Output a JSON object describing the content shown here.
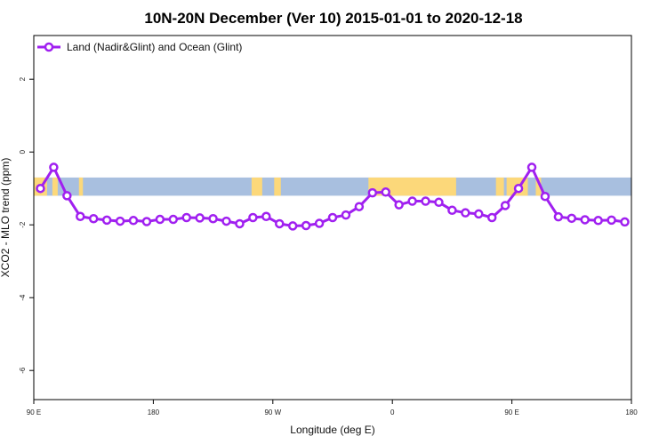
{
  "chart_data": {
    "type": "line",
    "title": "10N-20N December (Ver 10)   2015-01-01 to 2020-12-18",
    "xlabel": "Longitude (deg E)",
    "ylabel": "XCO2 - MLO trend (ppm)",
    "xlim": [
      90,
      540
    ],
    "ylim": [
      -6.8,
      3.2
    ],
    "x_ticks": [
      90,
      180,
      270,
      360,
      450,
      540
    ],
    "x_tick_labels": [
      "90 E",
      "180",
      "90 W",
      "0",
      "90 E",
      "180"
    ],
    "y_ticks": [
      2,
      0,
      -2,
      -4,
      -6
    ],
    "y_tick_labels": [
      "2",
      "0",
      "-2",
      "-4",
      "-6"
    ],
    "grid": false,
    "legend_position": "top-left",
    "map_band": {
      "y_range": [
        -1.2,
        -0.7
      ],
      "ocean_color": "#a8bfdf",
      "land_color": "#fcd87a"
    },
    "colors": {
      "line": "#a020f0",
      "marker_fill": "#ffffff"
    },
    "series": [
      {
        "name": "Land (Nadir&Glint) and Ocean (Glint)",
        "x": [
          95,
          105,
          115,
          125,
          135,
          145,
          155,
          165,
          175,
          185,
          195,
          205,
          215,
          225,
          235,
          245,
          255,
          265,
          275,
          285,
          295,
          305,
          315,
          325,
          335,
          345,
          355,
          365,
          375,
          385,
          395,
          405,
          415,
          425,
          435,
          445,
          455,
          465,
          475,
          485,
          495,
          505,
          515,
          525,
          535
        ],
        "values": [
          -1.0,
          -0.42,
          -1.2,
          -1.77,
          -1.83,
          -1.87,
          -1.9,
          -1.88,
          -1.91,
          -1.85,
          -1.85,
          -1.8,
          -1.81,
          -1.83,
          -1.9,
          -1.97,
          -1.8,
          -1.77,
          -1.97,
          -2.03,
          -2.02,
          -1.96,
          -1.8,
          -1.73,
          -1.5,
          -1.12,
          -1.1,
          -1.45,
          -1.35,
          -1.35,
          -1.38,
          -1.6,
          -1.67,
          -1.7,
          -1.8,
          -1.47,
          -1.0,
          -0.42,
          -1.22,
          -1.78,
          -1.82,
          -1.86,
          -1.88,
          -1.87,
          -1.92
        ]
      }
    ]
  }
}
